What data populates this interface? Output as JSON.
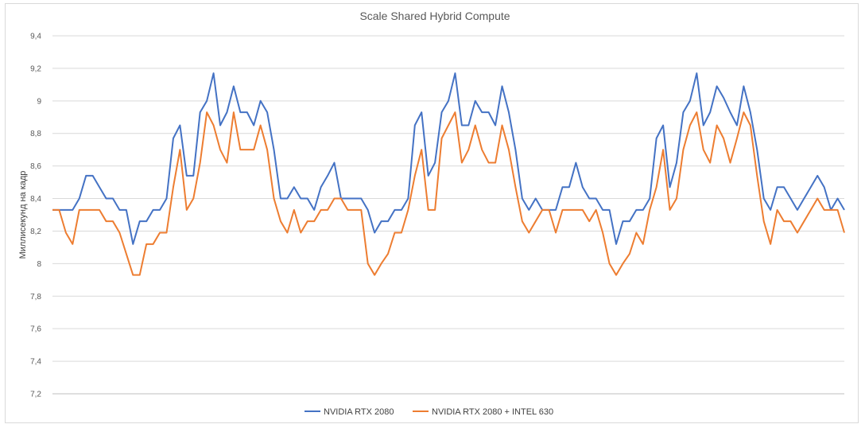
{
  "chart_data": {
    "type": "line",
    "title": "Scale Shared Hybrid Compute",
    "xlabel": "",
    "ylabel": "Миллисекунд на кадр",
    "ylim": [
      7.2,
      9.4
    ],
    "y_ticks": [
      "7,2",
      "7,4",
      "7,6",
      "7,8",
      "8",
      "8,2",
      "8,4",
      "8,6",
      "8,8",
      "9",
      "9,2",
      "9,4"
    ],
    "grid": true,
    "legend_position": "bottom",
    "series": [
      {
        "name": "NVIDIA RTX 2080",
        "color": "#4472C4",
        "values": [
          8.33,
          8.33,
          8.33,
          8.33,
          8.4,
          8.54,
          8.54,
          8.47,
          8.4,
          8.4,
          8.33,
          8.33,
          8.12,
          8.26,
          8.26,
          8.33,
          8.33,
          8.4,
          8.77,
          8.85,
          8.54,
          8.54,
          8.93,
          9.0,
          9.17,
          8.85,
          8.93,
          9.09,
          8.93,
          8.93,
          8.85,
          9.0,
          8.93,
          8.7,
          8.4,
          8.4,
          8.47,
          8.4,
          8.4,
          8.33,
          8.47,
          8.54,
          8.62,
          8.4,
          8.4,
          8.4,
          8.4,
          8.33,
          8.19,
          8.26,
          8.26,
          8.33,
          8.33,
          8.4,
          8.85,
          8.93,
          8.54,
          8.62,
          8.93,
          9.0,
          9.17,
          8.85,
          8.85,
          9.0,
          8.93,
          8.93,
          8.85,
          9.09,
          8.93,
          8.7,
          8.4,
          8.33,
          8.4,
          8.33,
          8.33,
          8.33,
          8.47,
          8.47,
          8.62,
          8.47,
          8.4,
          8.4,
          8.33,
          8.33,
          8.12,
          8.26,
          8.26,
          8.33,
          8.33,
          8.4,
          8.77,
          8.85,
          8.47,
          8.62,
          8.93,
          9.0,
          9.17,
          8.85,
          8.93,
          9.09,
          9.02,
          8.93,
          8.85,
          9.09,
          8.93,
          8.7,
          8.4,
          8.33,
          8.47,
          8.47,
          8.4,
          8.33,
          8.4,
          8.47,
          8.54,
          8.47,
          8.33,
          8.4,
          8.33
        ]
      },
      {
        "name": "NVIDIA RTX 2080 + INTEL 630",
        "color": "#ED7D31",
        "values": [
          8.33,
          8.33,
          8.19,
          8.12,
          8.33,
          8.33,
          8.33,
          8.33,
          8.26,
          8.26,
          8.19,
          8.06,
          7.93,
          7.93,
          8.12,
          8.12,
          8.19,
          8.19,
          8.47,
          8.7,
          8.33,
          8.4,
          8.62,
          8.93,
          8.85,
          8.7,
          8.62,
          8.93,
          8.7,
          8.7,
          8.7,
          8.85,
          8.7,
          8.4,
          8.26,
          8.19,
          8.33,
          8.19,
          8.26,
          8.26,
          8.33,
          8.33,
          8.4,
          8.4,
          8.33,
          8.33,
          8.33,
          8.0,
          7.93,
          8.0,
          8.06,
          8.19,
          8.19,
          8.33,
          8.54,
          8.7,
          8.33,
          8.33,
          8.77,
          8.85,
          8.93,
          8.62,
          8.7,
          8.85,
          8.7,
          8.62,
          8.62,
          8.85,
          8.7,
          8.47,
          8.26,
          8.19,
          8.26,
          8.33,
          8.33,
          8.19,
          8.33,
          8.33,
          8.33,
          8.33,
          8.26,
          8.33,
          8.19,
          8.0,
          7.93,
          8.0,
          8.06,
          8.19,
          8.12,
          8.33,
          8.47,
          8.7,
          8.33,
          8.4,
          8.7,
          8.85,
          8.93,
          8.7,
          8.62,
          8.85,
          8.77,
          8.62,
          8.77,
          8.93,
          8.85,
          8.54,
          8.26,
          8.12,
          8.33,
          8.26,
          8.26,
          8.19,
          8.26,
          8.33,
          8.4,
          8.33,
          8.33,
          8.33,
          8.19
        ]
      }
    ]
  }
}
